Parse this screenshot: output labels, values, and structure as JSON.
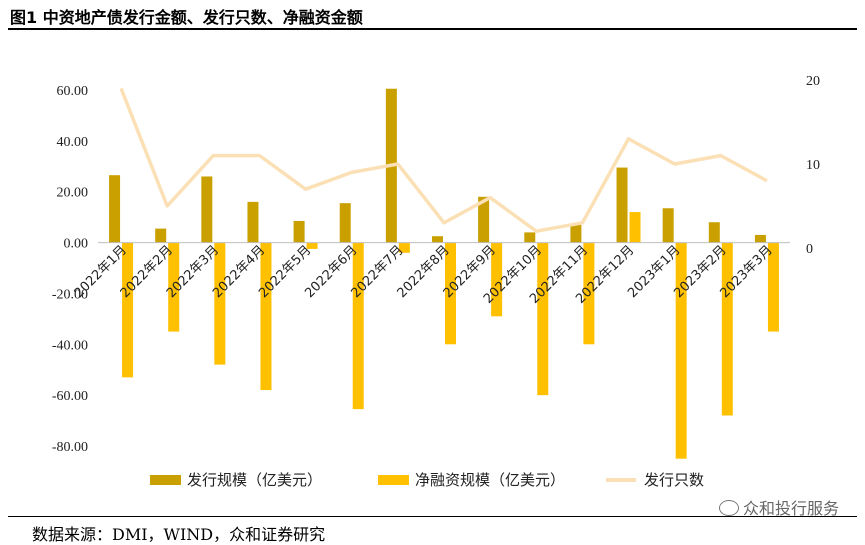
{
  "header": {
    "title": "图1 中资地产债发行金额、发行只数、净融资金额"
  },
  "footer": {
    "source": "数据来源：DMI，WIND，众和证券研究",
    "watermark": "众和投行服务"
  },
  "chart_data": {
    "type": "bar",
    "categories": [
      "2022年1月",
      "2022年2月",
      "2022年3月",
      "2022年4月",
      "2022年5月",
      "2022年6月",
      "2022年7月",
      "2022年8月",
      "2022年9月",
      "2022年10月",
      "2022年11月",
      "2022年12月",
      "2023年1月",
      "2023年2月",
      "2023年3月"
    ],
    "series": [
      {
        "name": "发行规模（亿美元）",
        "type": "bar",
        "axis": "left",
        "color": "#C9A000",
        "values": [
          26.5,
          5.5,
          26,
          16,
          8.5,
          15.5,
          60.5,
          2.5,
          18,
          4,
          7,
          29.5,
          13.5,
          8,
          3
        ]
      },
      {
        "name": "净融资规模（亿美元）",
        "type": "bar",
        "axis": "left",
        "color": "#FFC000",
        "values": [
          -53,
          -35,
          -48,
          -58,
          -2.5,
          -65.5,
          -4,
          -40,
          -29,
          -60,
          -40,
          12,
          -85,
          -68,
          -35
        ]
      },
      {
        "name": "发行只数",
        "type": "line",
        "axis": "right",
        "color": "#FBE0B6",
        "values": [
          19,
          5,
          11,
          11,
          7,
          9,
          10,
          3,
          6,
          2,
          3,
          13,
          10,
          11,
          8
        ]
      }
    ],
    "y_left": {
      "min": -80,
      "max": 60,
      "ticks": [
        "60.00",
        "40.00",
        "20.00",
        "0.00",
        "-20.00",
        "-40.00",
        "-60.00",
        "-80.00"
      ]
    },
    "y_right": {
      "min": 0,
      "max": 20,
      "ticks": [
        "20",
        "10",
        "0"
      ]
    },
    "grid": false,
    "legend_position": "bottom"
  }
}
